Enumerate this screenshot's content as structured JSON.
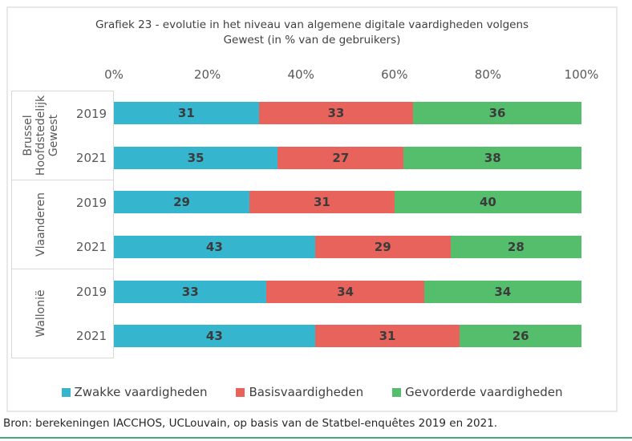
{
  "chart": {
    "title_line1": "Grafiek 23 - evolutie in het niveau van algemene digitale vaardigheden volgens",
    "title_line2": "Gewest (in % van de gebruikers)"
  },
  "source_note": "Bron: berekeningen IACCHOS, UCLouvain, op basis van de Statbel-enquêtes 2019 en 2021.",
  "chart_data": {
    "type": "bar",
    "stacked": true,
    "orientation": "horizontal",
    "title": "Grafiek 23 - evolutie in het niveau van algemene digitale vaardigheden volgens Gewest (in % van de gebruikers)",
    "x_ticks": [
      "0%",
      "20%",
      "40%",
      "60%",
      "80%",
      "100%"
    ],
    "xlim": [
      0,
      100
    ],
    "grid": false,
    "legend_position": "bottom",
    "series": [
      {
        "name": "Zwakke vaardigheden",
        "color": "#35b5ce"
      },
      {
        "name": "Basisvaardigheden",
        "color": "#e9635d"
      },
      {
        "name": "Gevorderde vaardigheden",
        "color": "#55be6c"
      }
    ],
    "groups": [
      {
        "region": "Brussel Hoofdstedelijk Gewest",
        "rows": [
          {
            "year": "2019",
            "values": [
              31,
              33,
              36
            ]
          },
          {
            "year": "2021",
            "values": [
              35,
              27,
              38
            ]
          }
        ]
      },
      {
        "region": "Vlaanderen",
        "rows": [
          {
            "year": "2019",
            "values": [
              29,
              31,
              40
            ]
          },
          {
            "year": "2021",
            "values": [
              43,
              29,
              28
            ]
          }
        ]
      },
      {
        "region": "Wallonië",
        "rows": [
          {
            "year": "2019",
            "values": [
              33,
              34,
              34
            ]
          },
          {
            "year": "2021",
            "values": [
              43,
              31,
              26
            ]
          }
        ]
      }
    ]
  },
  "colors": {
    "blue": "#35b5ce",
    "red": "#e9635d",
    "green": "#55be6c",
    "bottom_rule": "#47a87c",
    "chart_border": "#e8e8e8",
    "axis_box_border": "#d9d9d9"
  }
}
